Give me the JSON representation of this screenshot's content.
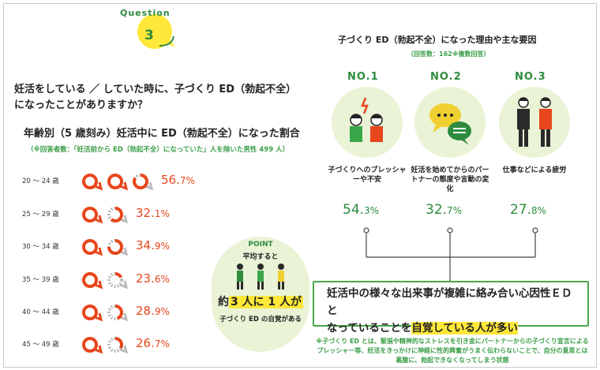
{
  "question": {
    "word": "Question",
    "number": "3",
    "text": "妊活をしている ／ していた時に、子づくり ED（勃起不全）になったことがありますか？"
  },
  "age_section": {
    "title": "年齢別（5 歳刻み）妊活中に ED（勃起不全）になった割合",
    "note": "（※回答者数：「妊活前から ED（勃起不全）になっていた」人を除いた男性 499 人）",
    "rows": [
      {
        "label": "20 ～ 24 歳",
        "value": 56.7,
        "pct_main": "56.",
        "pct_sub": "7%"
      },
      {
        "label": "25 ～ 29 歳",
        "value": 32.1,
        "pct_main": "32.",
        "pct_sub": "1%"
      },
      {
        "label": "30 ～ 34 歳",
        "value": 34.9,
        "pct_main": "34.",
        "pct_sub": "9%"
      },
      {
        "label": "35 ～ 39 歳",
        "value": 23.6,
        "pct_main": "23.",
        "pct_sub": "6%"
      },
      {
        "label": "40 ～ 44 歳",
        "value": 28.9,
        "pct_main": "28.",
        "pct_sub": "9%"
      },
      {
        "label": "45 ～ 49 歳",
        "value": 26.7,
        "pct_main": "26.",
        "pct_sub": "7%"
      }
    ]
  },
  "point": {
    "title": "POINT",
    "sub": "平均すると",
    "big_pre": "約",
    "big_hl": "3 人に 1 人が",
    "foot": "子づくり ED の自覚がある"
  },
  "reasons": {
    "title": "子づくり ED（勃起不全）になった理由や主な要因",
    "note": "（回答数：162※複数回答）",
    "items": [
      {
        "rank": "NO.1",
        "label": "子づくりへのプレッシャーや不安",
        "pct_main": "54.",
        "pct_sub": "3%",
        "icon": "stressed-people-icon"
      },
      {
        "rank": "NO.2",
        "label": "妊活を始めてからのパートナーの態度や言動の変化",
        "pct_main": "32.",
        "pct_sub": "7%",
        "icon": "speech-bubbles-icon"
      },
      {
        "rank": "NO.3",
        "label": "仕事などによる疲労",
        "pct_main": "27.",
        "pct_sub": "8%",
        "icon": "tired-workers-icon"
      }
    ]
  },
  "result": {
    "line1": "妊活中の様々な出来事が複雑に絡み合い心因性ＥＤと",
    "line2_pre": "なっていることを",
    "line2_hl": "自覚している人が多い"
  },
  "footnote": "※子づくり ED とは、緊張や精神的なストレスを引き金にパートナーからの子づくり宣言によるプレッシャー等、妊活をきっかけに神経に性的興奮がうまく伝わらないことで、自分の意思とは裏腹に、勃起できなくなってしまう状態",
  "colors": {
    "accent": "#e8461c",
    "green": "#2e8b3e",
    "yellow": "#ffe83a",
    "pale_green": "#eaf3d6"
  }
}
